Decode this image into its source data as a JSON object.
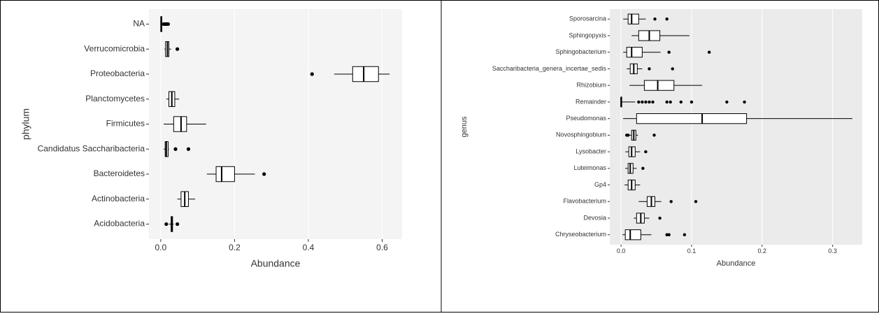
{
  "chart_data": [
    {
      "type": "box",
      "orientation": "horizontal",
      "x_label": "Abundance",
      "y_label": "phylum",
      "categories": [
        "Acidobacteria",
        "Actinobacteria",
        "Bacteroidetes",
        "Candidatus Saccharibacteria",
        "Firmicutes",
        "Planctomycetes",
        "Proteobacteria",
        "Verrucomicrobia",
        "NA"
      ],
      "min": [
        0.022,
        0.045,
        0.125,
        0.008,
        0.008,
        0.015,
        0.47,
        0.01,
        0
      ],
      "q1": [
        0.028,
        0.055,
        0.15,
        0.012,
        0.035,
        0.022,
        0.52,
        0.013,
        0
      ],
      "median": [
        0.03,
        0.065,
        0.165,
        0.015,
        0.055,
        0.03,
        0.55,
        0.018,
        0.001
      ],
      "q3": [
        0.032,
        0.075,
        0.2,
        0.02,
        0.07,
        0.038,
        0.59,
        0.022,
        0.003
      ],
      "max": [
        0.035,
        0.093,
        0.255,
        0.022,
        0.123,
        0.05,
        0.62,
        0.028,
        0.005
      ],
      "outliers": [
        [
          0.015,
          0.045
        ],
        [],
        [
          0.28
        ],
        [
          0.04,
          0.075
        ],
        [],
        [],
        [
          0.41
        ],
        [
          0.045
        ],
        [
          0.008,
          0.012,
          0.016,
          0.02
        ]
      ],
      "xlim": [
        -0.032,
        0.654
      ],
      "xticks": [
        {
          "value": 0,
          "label": "0.0"
        },
        0.2,
        0.4,
        0.6
      ],
      "grid": true,
      "panel_color": "#f4f4f4",
      "color": "#000000"
    },
    {
      "type": "box",
      "orientation": "horizontal",
      "x_label": "Abundance",
      "y_label": "genus",
      "categories": [
        "Chryseobacterium",
        "Devosia",
        "Flavobacterium",
        "Gp4",
        "Luteimonas",
        "Lysobacter",
        "Novosphingobium",
        "Pseudomonas",
        "Remainder",
        "Rhizobium",
        "Saccharibacteria_genera_incertae_sedis",
        "Sphingobacterium",
        "Sphingopyxis",
        "Sporosarcina"
      ],
      "min": [
        0.002,
        0.018,
        0.025,
        0.005,
        0.006,
        0.006,
        0.012,
        0.003,
        0,
        0.012,
        0.008,
        0.003,
        0.015,
        0.003
      ],
      "q1": [
        0.006,
        0.022,
        0.037,
        0.01,
        0.01,
        0.011,
        0.015,
        0.022,
        0,
        0.033,
        0.013,
        0.008,
        0.025,
        0.01
      ],
      "median": [
        0.013,
        0.028,
        0.043,
        0.015,
        0.013,
        0.015,
        0.018,
        0.115,
        0,
        0.052,
        0.018,
        0.015,
        0.04,
        0.015
      ],
      "q3": [
        0.028,
        0.033,
        0.048,
        0.02,
        0.017,
        0.02,
        0.021,
        0.178,
        0.001,
        0.075,
        0.023,
        0.03,
        0.055,
        0.025
      ],
      "max": [
        0.043,
        0.04,
        0.057,
        0.027,
        0.022,
        0.027,
        0.024,
        0.328,
        0.02,
        0.115,
        0.03,
        0.056,
        0.097,
        0.035
      ],
      "outliers": [
        [
          0.065,
          0.068,
          0.09
        ],
        [
          0.055
        ],
        [
          0.071,
          0.106
        ],
        [],
        [
          0.031
        ],
        [
          0.035
        ],
        [
          0.008,
          0.01,
          0.047
        ],
        [],
        [
          0.025,
          0.03,
          0.035,
          0.04,
          0.045,
          0.065,
          0.07,
          0.085,
          0.1,
          0.15,
          0.175
        ],
        [],
        [
          0.04,
          0.073
        ],
        [
          0.068,
          0.125
        ],
        [],
        [
          0.048,
          0.065
        ]
      ],
      "xlim": [
        -0.016,
        0.342
      ],
      "xticks": [
        {
          "value": 0,
          "label": "0.0"
        },
        0.1,
        0.2,
        0.3
      ],
      "grid": true,
      "panel_color": "#ebebeb",
      "color": "#000000"
    }
  ]
}
